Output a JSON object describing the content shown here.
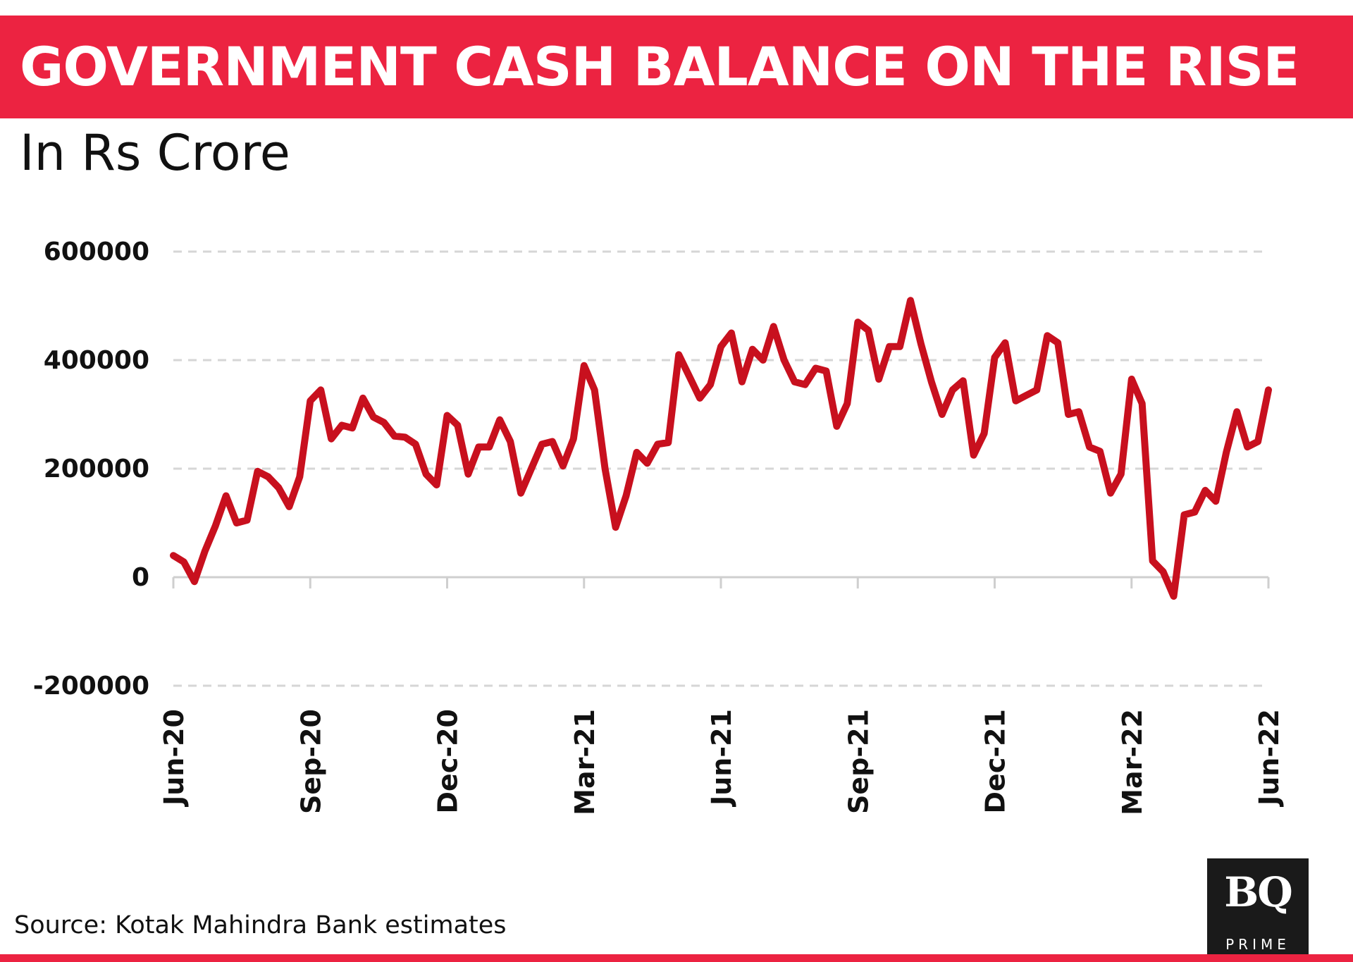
{
  "header": {
    "title": "GOVERNMENT CASH BALANCE ON THE RISE"
  },
  "subtitle": "In Rs Crore",
  "source": "Source: Kotak Mahindra Bank estimates",
  "logo": {
    "mark": "BQ",
    "word": "PRIME"
  },
  "colors": {
    "accent": "#ec2341",
    "line": "#c8101e"
  },
  "chart_data": {
    "type": "line",
    "title": "GOVERNMENT CASH BALANCE ON THE RISE",
    "subtitle": "In Rs Crore",
    "xlabel": "",
    "ylabel": "",
    "ylim": [
      -200000,
      600000
    ],
    "yticks": [
      600000,
      400000,
      200000,
      0,
      -200000
    ],
    "x_tick_labels": [
      "Jun-20",
      "Sep-20",
      "Dec-20",
      "Mar-21",
      "Jun-21",
      "Sep-21",
      "Dec-21",
      "Mar-22",
      "Jun-22"
    ],
    "grid": true,
    "series": [
      {
        "values": [
          40000,
          28000,
          -8000,
          48000,
          95000,
          150000,
          100000,
          105000,
          195000,
          185000,
          165000,
          130000,
          185000,
          325000,
          345000,
          255000,
          280000,
          275000,
          330000,
          295000,
          285000,
          260000,
          258000,
          245000,
          190000,
          170000,
          298000,
          280000,
          190000,
          240000,
          240000,
          290000,
          250000,
          155000,
          200000,
          245000,
          250000,
          205000,
          255000,
          390000,
          345000,
          200000,
          92000,
          150000,
          230000,
          210000,
          245000,
          248000,
          410000,
          370000,
          330000,
          355000,
          425000,
          450000,
          360000,
          420000,
          400000,
          462000,
          400000,
          360000,
          355000,
          385000,
          380000,
          278000,
          320000,
          470000,
          455000,
          365000,
          425000,
          425000,
          510000,
          430000,
          360000,
          300000,
          345000,
          362000,
          225000,
          265000,
          405000,
          432000,
          325000,
          335000,
          345000,
          445000,
          432000,
          300000,
          305000,
          240000,
          232000,
          155000,
          190000,
          365000,
          320000,
          30000,
          10000,
          -35000,
          115000,
          120000,
          160000,
          140000,
          230000,
          305000,
          240000,
          250000,
          345000
        ]
      }
    ]
  }
}
